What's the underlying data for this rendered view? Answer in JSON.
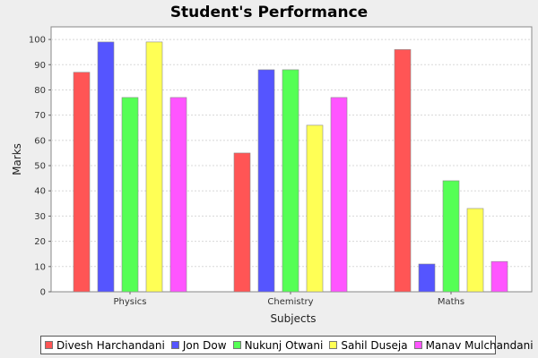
{
  "chart_data": {
    "type": "bar",
    "title": "Student's Performance",
    "xlabel": "Subjects",
    "ylabel": "Marks",
    "categories": [
      "Physics",
      "Chemistry",
      "Maths"
    ],
    "ylim": [
      0,
      105
    ],
    "yticks": [
      0,
      10,
      20,
      30,
      40,
      50,
      60,
      70,
      80,
      90,
      100
    ],
    "grid": true,
    "legend_position": "bottom",
    "series": [
      {
        "name": "Divesh Harchandani",
        "color": "#ff5555",
        "values": [
          87,
          55,
          96
        ]
      },
      {
        "name": "Jon Dow",
        "color": "#5555ff",
        "values": [
          99,
          88,
          11
        ]
      },
      {
        "name": "Nukunj Otwani",
        "color": "#55ff55",
        "values": [
          77,
          88,
          44
        ]
      },
      {
        "name": "Sahil Duseja",
        "color": "#ffff55",
        "values": [
          99,
          66,
          33
        ]
      },
      {
        "name": "Manav Mulchandani",
        "color": "#ff55ff",
        "values": [
          77,
          77,
          12
        ]
      }
    ]
  }
}
